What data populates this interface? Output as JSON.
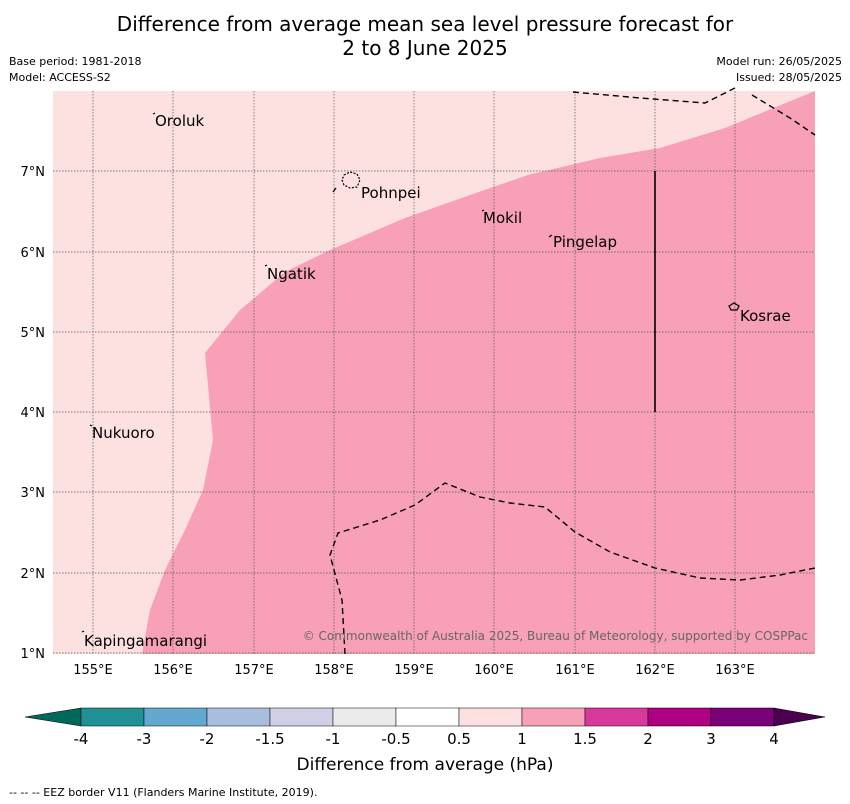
{
  "title": {
    "line1": "Difference from average mean sea level pressure forecast for",
    "line2": "2 to 8 June 2025"
  },
  "meta": {
    "base_period": "Base period: 1981-2018",
    "model": "Model: ACCESS-S2",
    "model_run": "Model run: 26/05/2025",
    "issued": "Issued: 28/05/2025"
  },
  "axes": {
    "lon_ticks": [
      "155°E",
      "156°E",
      "157°E",
      "158°E",
      "159°E",
      "160°E",
      "161°E",
      "162°E",
      "163°E"
    ],
    "lat_ticks": [
      "7°N",
      "6°N",
      "5°N",
      "4°N",
      "3°N",
      "2°N",
      "1°N"
    ]
  },
  "places": [
    {
      "name": "Oroluk"
    },
    {
      "name": "Pohnpei"
    },
    {
      "name": "Mokil"
    },
    {
      "name": "Pingelap"
    },
    {
      "name": "Ngatik"
    },
    {
      "name": "Kosrae"
    },
    {
      "name": "Nukuoro"
    },
    {
      "name": "Kapingamarangi"
    }
  ],
  "copyright": "© Commonwealth of Australia 2025, Bureau of Meteorology, supported by COSPPac",
  "colorbar": {
    "title": "Difference from average (hPa)",
    "labels": [
      "-4",
      "-3",
      "-2",
      "-1.5",
      "-1",
      "-0.5",
      "0.5",
      "1",
      "1.5",
      "2",
      "3",
      "4"
    ],
    "colors": [
      "#00695c",
      "#1f9194",
      "#63a8cf",
      "#a8bedd",
      "#cfcfe5",
      "#ebebeb",
      "#ffffff",
      "#fde1e1",
      "#f8a0b8",
      "#d8379b",
      "#ae0080",
      "#7a0178",
      "#4b0050"
    ]
  },
  "map_fields": {
    "lower_band_color": "#fde1e1",
    "upper_band_color": "#f8a0b8",
    "lower_band_range": "0.5 to 1",
    "upper_band_range": "1 to 1.5"
  },
  "footnote": "--  --  -- EEZ border V11 (Flanders Marine Institute, 2019)."
}
